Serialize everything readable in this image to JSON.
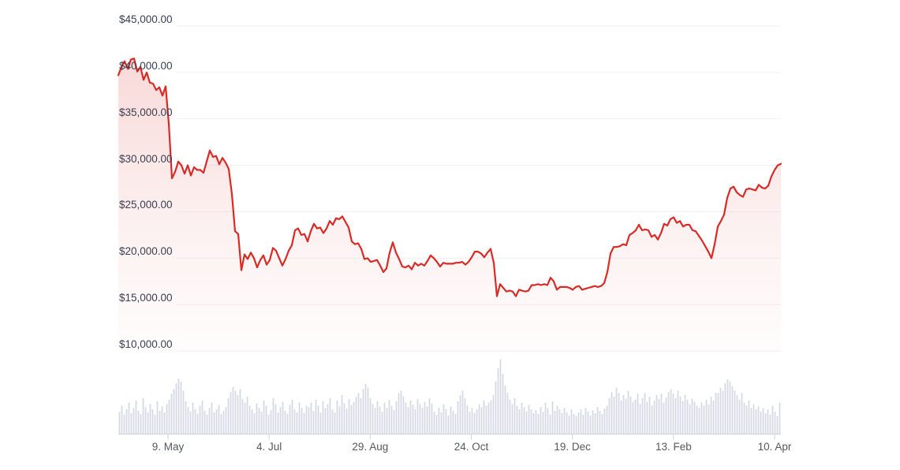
{
  "chart_data": {
    "type": "line",
    "title": "",
    "subtitle": "",
    "legend": "none",
    "grid": "horizontal",
    "y_axis": {
      "min": 10000,
      "max": 45000,
      "tick_values": [
        45000,
        40000,
        35000,
        30000,
        25000,
        20000,
        15000,
        10000
      ],
      "tick_labels": [
        "$45,000.00",
        "$40,000.00",
        "$35,000.00",
        "$30,000.00",
        "$25,000.00",
        "$20,000.00",
        "$15,000.00",
        "$10,000.00"
      ]
    },
    "x_axis": {
      "tick_labels": [
        "9. May",
        "4. Jul",
        "29. Aug",
        "24. Oct",
        "19. Dec",
        "13. Feb",
        "10. Apr"
      ]
    },
    "colors": {
      "price_line": "#d92b26",
      "area_fill": "#d92b26",
      "volume_bar": "#d6d9e3",
      "gridline": "#f0f1f4",
      "axis_line": "#cdd3e4",
      "y_label_text": "#3a3f51",
      "x_label_text": "#55585f",
      "background": "#ffffff"
    },
    "series": [
      {
        "name": "price",
        "unit": "USD",
        "values": [
          39700,
          40600,
          41200,
          40400,
          41400,
          41500,
          40100,
          40600,
          39200,
          40000,
          38900,
          38800,
          38100,
          38400,
          37500,
          38500,
          34500,
          28600,
          29300,
          30400,
          30000,
          29100,
          30000,
          28900,
          29800,
          29500,
          29500,
          29200,
          30400,
          31600,
          30900,
          31000,
          30100,
          30800,
          30300,
          29600,
          26900,
          22900,
          22600,
          18700,
          20400,
          19900,
          20600,
          20000,
          19000,
          19800,
          20300,
          19300,
          19800,
          21100,
          20800,
          20000,
          19200,
          19900,
          20800,
          21400,
          23000,
          23200,
          22500,
          22600,
          21800,
          22900,
          23700,
          23200,
          23300,
          22700,
          23200,
          24000,
          23600,
          24300,
          24200,
          24500,
          23900,
          23300,
          21800,
          21500,
          21600,
          21000,
          19900,
          20000,
          19600,
          19700,
          19800,
          19200,
          18500,
          18900,
          20600,
          21700,
          20600,
          19900,
          19100,
          19000,
          19200,
          18800,
          19500,
          19200,
          19400,
          19200,
          19700,
          20300,
          20000,
          19600,
          19100,
          19500,
          19400,
          19400,
          19400,
          19500,
          19500,
          19600,
          19300,
          19600,
          20100,
          20700,
          20700,
          20500,
          20100,
          20600,
          21000,
          19500,
          15900,
          17200,
          16800,
          16400,
          16500,
          16400,
          15900,
          16600,
          16500,
          16400,
          16500,
          17100,
          17100,
          17200,
          17100,
          17200,
          17100,
          17900,
          17500,
          16600,
          16900,
          16900,
          16900,
          16800,
          16600,
          16900,
          17000,
          16600,
          16700,
          16800,
          16900,
          17000,
          16900,
          17000,
          17300,
          18500,
          20500,
          21200,
          21200,
          21300,
          21500,
          21400,
          22500,
          22700,
          23000,
          23600,
          23000,
          23100,
          23000,
          22300,
          22500,
          22000,
          22700,
          23700,
          23500,
          24200,
          24400,
          23800,
          24000,
          23400,
          23600,
          23600,
          23000,
          22900,
          22400,
          21900,
          21300,
          20700,
          20000,
          21500,
          23400,
          24000,
          24700,
          26500,
          27500,
          27700,
          27100,
          26800,
          26600,
          27400,
          27500,
          27400,
          27300,
          27900,
          27600,
          27500,
          27800,
          28800,
          29500,
          30000,
          30150
        ]
      },
      {
        "name": "volume",
        "unit": "percent_of_pane",
        "values": [
          30,
          38,
          26,
          33,
          42,
          28,
          35,
          45,
          31,
          27,
          48,
          36,
          29,
          40,
          33,
          26,
          44,
          31,
          37,
          29,
          40,
          46,
          54,
          60,
          68,
          74,
          70,
          58,
          44,
          36,
          30,
          42,
          33,
          27,
          38,
          45,
          31,
          26,
          35,
          42,
          29,
          33,
          39,
          27,
          31,
          36,
          48,
          56,
          63,
          58,
          52,
          60,
          47,
          42,
          50,
          38,
          33,
          28,
          41,
          35,
          30,
          45,
          38,
          26,
          32,
          48,
          40,
          29,
          36,
          43,
          31,
          27,
          39,
          46,
          33,
          29,
          42,
          35,
          28,
          38,
          36,
          42,
          31,
          46,
          38,
          29,
          44,
          35,
          40,
          48,
          33,
          29,
          45,
          37,
          52,
          41,
          34,
          47,
          39,
          43,
          50,
          55,
          48,
          60,
          67,
          62,
          48,
          40,
          35,
          44,
          37,
          30,
          42,
          35,
          46,
          38,
          32,
          44,
          55,
          58,
          50,
          42,
          36,
          45,
          39,
          33,
          47,
          40,
          35,
          43,
          37,
          48,
          41,
          30,
          26,
          35,
          29,
          40,
          33,
          25,
          37,
          31,
          27,
          44,
          52,
          58,
          48,
          38,
          30,
          35,
          28,
          33,
          40,
          36,
          45,
          38,
          42,
          45,
          52,
          70,
          88,
          100,
          80,
          65,
          55,
          46,
          40,
          48,
          38,
          33,
          42,
          36,
          30,
          39,
          33,
          28,
          32,
          27,
          36,
          30,
          42,
          35,
          26,
          44,
          31,
          38,
          33,
          28,
          35,
          29,
          25,
          33,
          27,
          24,
          29,
          33,
          26,
          35,
          30,
          25,
          32,
          28,
          36,
          31,
          27,
          34,
          38,
          48,
          56,
          50,
          62,
          55,
          45,
          52,
          47,
          58,
          50,
          43,
          46,
          54,
          40,
          48,
          55,
          43,
          50,
          38,
          45,
          52,
          47,
          54,
          42,
          49,
          56,
          60,
          54,
          48,
          58,
          50,
          44,
          52,
          46,
          40,
          47,
          43,
          38,
          35,
          42,
          38,
          46,
          40,
          50,
          45,
          55,
          55,
          62,
          58,
          68,
          73,
          70,
          64,
          58,
          52,
          46,
          55,
          42,
          38,
          45,
          35,
          40,
          33,
          37,
          30,
          35,
          28,
          33,
          26,
          38,
          30,
          24,
          42
        ]
      }
    ]
  }
}
